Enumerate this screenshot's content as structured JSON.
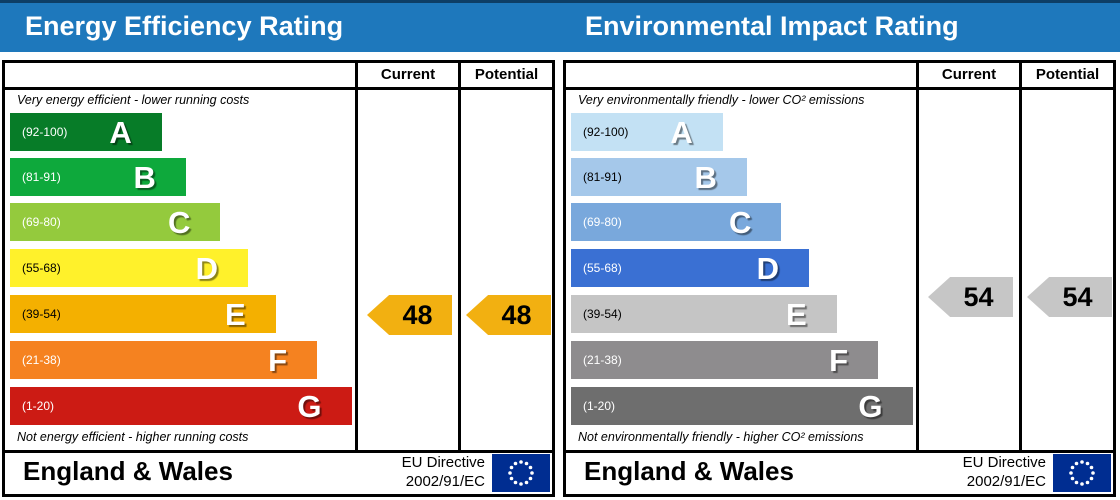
{
  "header": {
    "color": "#1e78bc",
    "titles": [
      "Energy Efficiency Rating",
      "Environmental Impact Rating"
    ]
  },
  "eu_flag": {
    "color": "#002d91",
    "star_color": "#ffffff"
  },
  "panels": [
    {
      "title": "Energy Efficiency Rating",
      "col_current": "Current",
      "col_potential": "Potential",
      "top_note": "Very energy efficient - lower running costs",
      "bottom_note": "Not energy efficient - higher running costs",
      "bands": [
        {
          "range": "(92-100)",
          "letter": "A",
          "color": "#077c28",
          "width_pct": 44,
          "label_color": "#ffffff"
        },
        {
          "range": "(81-91)",
          "letter": "B",
          "color": "#0ea93c",
          "width_pct": 51,
          "label_color": "#ffffff"
        },
        {
          "range": "(69-80)",
          "letter": "C",
          "color": "#94ca3d",
          "width_pct": 61,
          "label_color": "#ffffff"
        },
        {
          "range": "(55-68)",
          "letter": "D",
          "color": "#fff12b",
          "width_pct": 69,
          "label_color": "#000000"
        },
        {
          "range": "(39-54)",
          "letter": "E",
          "color": "#f4b000",
          "width_pct": 77,
          "label_color": "#000000"
        },
        {
          "range": "(21-38)",
          "letter": "F",
          "color": "#f58220",
          "width_pct": 89,
          "label_color": "#ffffff"
        },
        {
          "range": "(1-20)",
          "letter": "G",
          "color": "#cc1b14",
          "width_pct": 99,
          "label_color": "#ffffff"
        }
      ],
      "current": {
        "label": "48",
        "color": "#f2b011"
      },
      "potential": {
        "label": "48",
        "color": "#f2b011"
      },
      "region": "England & Wales",
      "directive_line1": "EU Directive",
      "directive_line2": "2002/91/EC"
    },
    {
      "title": "Environmental Impact Rating",
      "col_current": "Current",
      "col_potential": "Potential",
      "top_note": "Very environmentally friendly - lower CO² emissions",
      "bottom_note": "Not environmentally friendly - higher CO² emissions",
      "bands": [
        {
          "range": "(92-100)",
          "letter": "A",
          "color": "#c3e1f4",
          "width_pct": 44,
          "label_color": "#000000"
        },
        {
          "range": "(81-91)",
          "letter": "B",
          "color": "#a5c8ea",
          "width_pct": 51,
          "label_color": "#000000"
        },
        {
          "range": "(69-80)",
          "letter": "C",
          "color": "#79a8dc",
          "width_pct": 61,
          "label_color": "#ffffff"
        },
        {
          "range": "(55-68)",
          "letter": "D",
          "color": "#3a70d3",
          "width_pct": 69,
          "label_color": "#ffffff"
        },
        {
          "range": "(39-54)",
          "letter": "E",
          "color": "#c5c5c5",
          "width_pct": 77,
          "label_color": "#000000"
        },
        {
          "range": "(21-38)",
          "letter": "F",
          "color": "#8e8c8e",
          "width_pct": 89,
          "label_color": "#ffffff"
        },
        {
          "range": "(1-20)",
          "letter": "G",
          "color": "#6e6e6e",
          "width_pct": 99,
          "label_color": "#ffffff"
        }
      ],
      "current": {
        "label": "54",
        "color": "#c6c6c6"
      },
      "potential": {
        "label": "54",
        "color": "#c6c6c6"
      },
      "region": "England & Wales",
      "directive_line1": "EU Directive",
      "directive_line2": "2002/91/EC"
    }
  ],
  "chart_data": [
    {
      "type": "bar",
      "title": "Energy Efficiency Rating",
      "top_label": "Very energy efficient - lower running costs",
      "bottom_label": "Not energy efficient - higher running costs",
      "categories": [
        "A",
        "B",
        "C",
        "D",
        "E",
        "F",
        "G"
      ],
      "band_ranges": [
        [
          92,
          100
        ],
        [
          81,
          91
        ],
        [
          69,
          80
        ],
        [
          55,
          68
        ],
        [
          39,
          54
        ],
        [
          21,
          38
        ],
        [
          1,
          20
        ]
      ],
      "series": [
        {
          "name": "Current",
          "values": [
            48
          ],
          "band": "E"
        },
        {
          "name": "Potential",
          "values": [
            48
          ],
          "band": "E"
        }
      ],
      "value_range": [
        1,
        100
      ]
    },
    {
      "type": "bar",
      "title": "Environmental Impact Rating",
      "top_label": "Very environmentally friendly - lower CO² emissions",
      "bottom_label": "Not environmentally friendly - higher CO² emissions",
      "categories": [
        "A",
        "B",
        "C",
        "D",
        "E",
        "F",
        "G"
      ],
      "band_ranges": [
        [
          92,
          100
        ],
        [
          81,
          91
        ],
        [
          69,
          80
        ],
        [
          55,
          68
        ],
        [
          39,
          54
        ],
        [
          21,
          38
        ],
        [
          1,
          20
        ]
      ],
      "series": [
        {
          "name": "Current",
          "values": [
            54
          ],
          "band": "E"
        },
        {
          "name": "Potential",
          "values": [
            54
          ],
          "band": "E"
        }
      ],
      "value_range": [
        1,
        100
      ]
    }
  ]
}
